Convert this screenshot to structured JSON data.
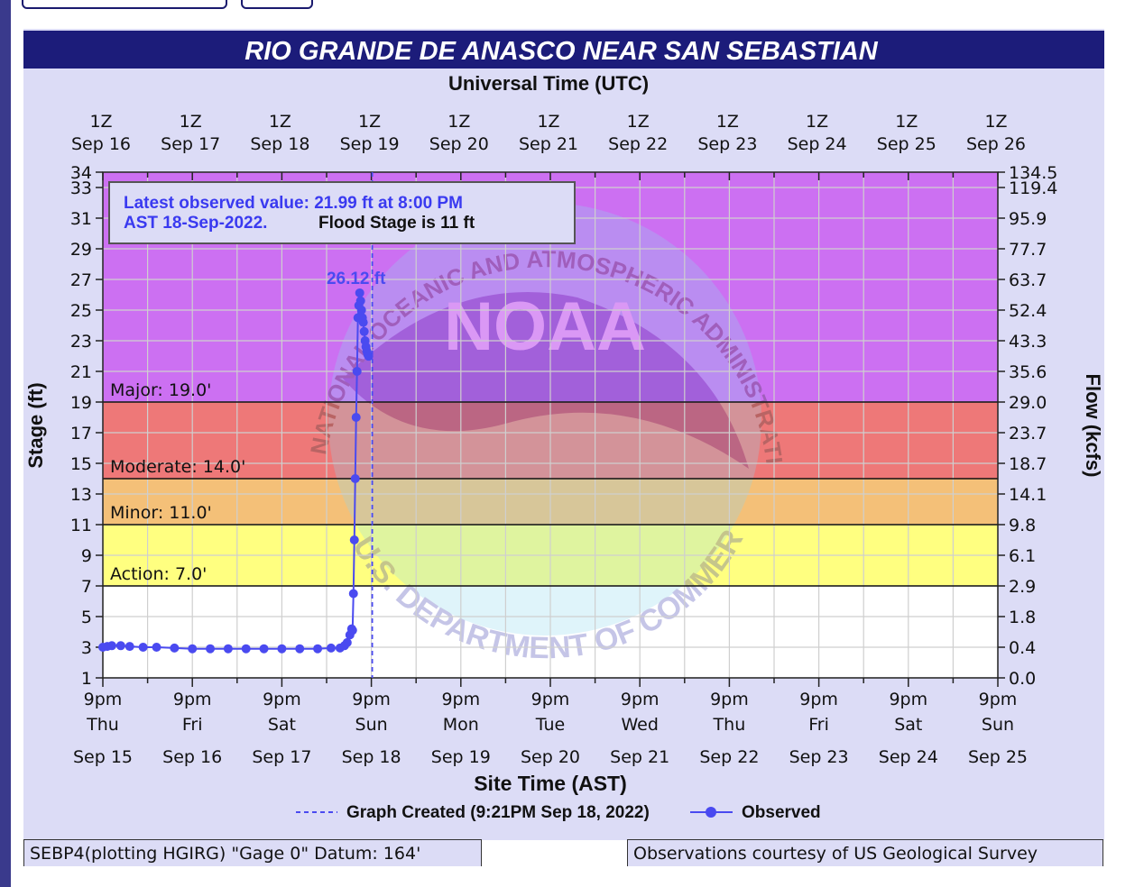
{
  "chart_data": {
    "type": "line",
    "title": "RIO GRANDE DE ANASCO NEAR SAN SEBASTIAN",
    "top_axis_label": "Universal Time (UTC)",
    "top_ticks": [
      {
        "l1": "1Z",
        "l2": "Sep 16"
      },
      {
        "l1": "1Z",
        "l2": "Sep 17"
      },
      {
        "l1": "1Z",
        "l2": "Sep 18"
      },
      {
        "l1": "1Z",
        "l2": "Sep 19"
      },
      {
        "l1": "1Z",
        "l2": "Sep 20"
      },
      {
        "l1": "1Z",
        "l2": "Sep 21"
      },
      {
        "l1": "1Z",
        "l2": "Sep 22"
      },
      {
        "l1": "1Z",
        "l2": "Sep 23"
      },
      {
        "l1": "1Z",
        "l2": "Sep 24"
      },
      {
        "l1": "1Z",
        "l2": "Sep 25"
      },
      {
        "l1": "1Z",
        "l2": "Sep 26"
      }
    ],
    "xlabel": "Site Time (AST)",
    "bottom_ticks": [
      {
        "time": "9pm",
        "day": "Thu",
        "date": "Sep 15"
      },
      {
        "time": "9pm",
        "day": "Fri",
        "date": "Sep 16"
      },
      {
        "time": "9pm",
        "day": "Sat",
        "date": "Sep 17"
      },
      {
        "time": "9pm",
        "day": "Sun",
        "date": "Sep 18"
      },
      {
        "time": "9pm",
        "day": "Mon",
        "date": "Sep 19"
      },
      {
        "time": "9pm",
        "day": "Tue",
        "date": "Sep 20"
      },
      {
        "time": "9pm",
        "day": "Wed",
        "date": "Sep 21"
      },
      {
        "time": "9pm",
        "day": "Thu",
        "date": "Sep 22"
      },
      {
        "time": "9pm",
        "day": "Fri",
        "date": "Sep 23"
      },
      {
        "time": "9pm",
        "day": "Sat",
        "date": "Sep 24"
      },
      {
        "time": "9pm",
        "day": "Sun",
        "date": "Sep 25"
      }
    ],
    "xlim": [
      "9pm Sep 15",
      "9pm Sep 25"
    ],
    "ylabel": "Stage (ft)",
    "ylim": [
      1,
      34
    ],
    "yticks": [
      1,
      3,
      5,
      7,
      9,
      11,
      13,
      15,
      17,
      19,
      21,
      23,
      25,
      27,
      29,
      31,
      33,
      34
    ],
    "y2label": "Flow (kcfs)",
    "y2ticks": [
      {
        "stage": 1,
        "label": "0.0"
      },
      {
        "stage": 3,
        "label": "0.4"
      },
      {
        "stage": 5,
        "label": "1.8"
      },
      {
        "stage": 7,
        "label": "2.9"
      },
      {
        "stage": 9,
        "label": "6.1"
      },
      {
        "stage": 11,
        "label": "9.8"
      },
      {
        "stage": 13,
        "label": "14.1"
      },
      {
        "stage": 15,
        "label": "18.7"
      },
      {
        "stage": 17,
        "label": "23.7"
      },
      {
        "stage": 19,
        "label": "29.0"
      },
      {
        "stage": 21,
        "label": "35.6"
      },
      {
        "stage": 23,
        "label": "43.3"
      },
      {
        "stage": 25,
        "label": "52.4"
      },
      {
        "stage": 27,
        "label": "63.7"
      },
      {
        "stage": 29,
        "label": "77.7"
      },
      {
        "stage": 31,
        "label": "95.9"
      },
      {
        "stage": 33,
        "label": "119.4"
      },
      {
        "stage": 34,
        "label": "134.5"
      }
    ],
    "flood_categories": [
      {
        "name": "Action",
        "level": 7,
        "label": "Action: 7.0'",
        "color": "#ffff80"
      },
      {
        "name": "Minor",
        "level": 11,
        "label": "Minor: 11.0'",
        "color": "#f4c078"
      },
      {
        "name": "Moderate",
        "level": 14,
        "label": "Moderate: 14.0'",
        "color": "#ee7878"
      },
      {
        "name": "Major",
        "level": 19,
        "label": "Major: 19.0'",
        "color": "#cc70f2"
      }
    ],
    "below_action_color": "#ffffff",
    "series": [
      {
        "name": "Observed",
        "color": "#4a4af0",
        "x_days_from_start": [
          0.0,
          0.05,
          0.1,
          0.2,
          0.3,
          0.45,
          0.6,
          0.8,
          1.0,
          1.2,
          1.4,
          1.6,
          1.8,
          2.0,
          2.2,
          2.4,
          2.55,
          2.65,
          2.7,
          2.73,
          2.76,
          2.78,
          2.79,
          2.8,
          2.81,
          2.82,
          2.83,
          2.84,
          2.85,
          2.86,
          2.87,
          2.88,
          2.89,
          2.9,
          2.91,
          2.92,
          2.93,
          2.94,
          2.95,
          2.96,
          2.97
        ],
        "y": [
          3.0,
          3.05,
          3.1,
          3.1,
          3.05,
          3.0,
          3.0,
          2.95,
          2.9,
          2.9,
          2.9,
          2.9,
          2.9,
          2.9,
          2.9,
          2.9,
          2.95,
          2.95,
          3.1,
          3.3,
          3.8,
          4.2,
          4.1,
          6.5,
          10.0,
          14.0,
          18.0,
          21.0,
          24.5,
          25.3,
          26.12,
          25.6,
          25.0,
          24.5,
          24.2,
          23.6,
          23.0,
          22.6,
          22.3,
          22.1,
          21.99
        ]
      }
    ],
    "peak_label": "26.12 ft",
    "graph_created_label": "Graph Created (9:21PM Sep 18, 2022)",
    "graph_created_x_days_from_start": 3.01,
    "legend": "bottom-center",
    "grid": true,
    "info_box": {
      "line1": "Latest observed value: 21.99 ft at 8:00 PM",
      "line2a": "AST 18-Sep-2022.",
      "line2b": "Flood Stage is 11 ft"
    },
    "watermark": {
      "center": "NOAA",
      "ring_top": "NATIONAL OCEANIC AND ATMOSPHERIC ADMINISTRATION",
      "ring_bottom": "U.S. DEPARTMENT OF COMMERCE"
    },
    "colors": {
      "title_bg": "#1c1c7a",
      "plot_outer_bg": "#dcdcf6",
      "series": "#4a4af0"
    }
  },
  "footer": {
    "left": "SEBP4(plotting HGIRG) \"Gage 0\" Datum: 164'",
    "right": "Observations courtesy of US Geological Survey"
  }
}
